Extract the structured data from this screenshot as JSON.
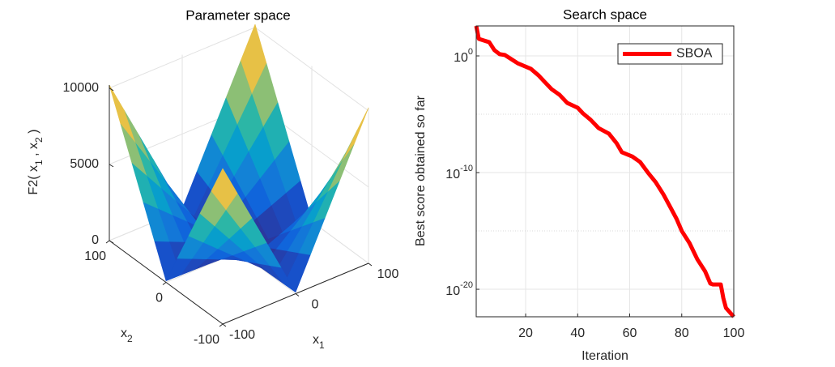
{
  "chart_data": [
    {
      "type": "surface",
      "title": "Parameter space",
      "xlabel": [
        "x",
        "1"
      ],
      "ylabel": [
        "x",
        "2"
      ],
      "zlabel": [
        "F2( x",
        "1",
        " , x",
        "2",
        " )"
      ],
      "x": [
        -100,
        -80,
        -60,
        -40,
        -20,
        0,
        20,
        40,
        60,
        80,
        100
      ],
      "y": [
        -100,
        -80,
        -60,
        -40,
        -20,
        0,
        20,
        40,
        60,
        80,
        100
      ],
      "z": [
        [
          10200,
          8180,
          6160,
          4140,
          2120,
          100,
          2120,
          4140,
          6160,
          8180,
          10200
        ],
        [
          8180,
          6560,
          4940,
          3320,
          1700,
          80,
          1700,
          3320,
          4940,
          6560,
          8180
        ],
        [
          6160,
          4940,
          3720,
          2500,
          1280,
          60,
          1280,
          2500,
          3720,
          4940,
          6160
        ],
        [
          4140,
          3320,
          2500,
          1680,
          860,
          40,
          860,
          1680,
          2500,
          3320,
          4140
        ],
        [
          2120,
          1700,
          1280,
          860,
          440,
          20,
          440,
          860,
          1280,
          1700,
          2120
        ],
        [
          100,
          80,
          60,
          40,
          20,
          0,
          20,
          40,
          60,
          80,
          100
        ],
        [
          2120,
          1700,
          1280,
          860,
          440,
          20,
          440,
          860,
          1280,
          1700,
          2120
        ],
        [
          4140,
          3320,
          2500,
          1680,
          860,
          40,
          860,
          1680,
          2500,
          3320,
          4140
        ],
        [
          6160,
          4940,
          3720,
          2500,
          1280,
          60,
          1280,
          2500,
          3720,
          4940,
          6160
        ],
        [
          8180,
          6560,
          4940,
          3320,
          1700,
          80,
          1700,
          3320,
          4940,
          6560,
          8180
        ],
        [
          10200,
          8180,
          6160,
          4140,
          2120,
          100,
          2120,
          4140,
          6160,
          8180,
          10200
        ]
      ],
      "xlim": [
        -100,
        100
      ],
      "ylim": [
        -100,
        100
      ],
      "zlim": [
        0,
        10200
      ],
      "xticks": [
        -100,
        0,
        100
      ],
      "yticks": [
        -100,
        0,
        100
      ],
      "zticks": [
        0,
        5000,
        10000
      ],
      "grid": true,
      "colormap": [
        "#352a87",
        "#0f5cdd",
        "#1481d6",
        "#06a4ca",
        "#2eb7a4",
        "#87bf77",
        "#d1bb59",
        "#fec832",
        "#f9fb0e"
      ]
    },
    {
      "type": "line",
      "title": "Search space",
      "xlabel": "Iteration",
      "ylabel": "Best score obtained so far",
      "x": [
        1,
        2,
        6,
        8,
        10,
        12,
        17,
        22,
        25,
        27,
        30,
        33,
        36,
        40,
        42,
        45,
        48,
        52,
        55,
        57,
        61,
        64,
        67,
        70,
        73,
        76,
        78,
        80,
        83,
        86,
        89,
        91,
        92,
        95,
        96,
        97,
        100
      ],
      "series": [
        {
          "name": "SBOA",
          "color": "#ff0000",
          "values": [
            371,
            29,
            15,
            3.1,
            1.4,
            1.2,
            0.23,
            0.078,
            0.021,
            0.007,
            0.0014,
            0.00047,
            9.3e-05,
            3.6e-05,
            1.2e-05,
            3.3e-06,
            6.6e-07,
            2.2e-07,
            3.2e-08,
            5.5e-09,
            2.4e-09,
            8e-10,
            1e-10,
            1.5e-11,
            1.3e-12,
            7.5e-14,
            1.1e-14,
            1e-15,
            9e-17,
            3.7e-18,
            3.4e-19,
            3.1e-20,
            2.6e-20,
            2.6e-20,
            1.7e-21,
            2.5e-22,
            4.4e-23
          ]
        }
      ],
      "xlim": [
        1,
        100
      ],
      "ylim": [
        4.4e-23,
        371
      ],
      "log_y": true,
      "xticks": [
        20,
        40,
        60,
        80,
        100
      ],
      "yticks": [
        {
          "value": 1e-20,
          "label": "10",
          "exponent": "-20"
        },
        {
          "value": 1e-10,
          "label": "10",
          "exponent": "-10"
        },
        {
          "value": 1,
          "label": "10",
          "exponent": "0"
        }
      ],
      "yminor_grid": [
        1e-15,
        1e-05
      ],
      "grid": true,
      "legend": "northeast"
    }
  ]
}
